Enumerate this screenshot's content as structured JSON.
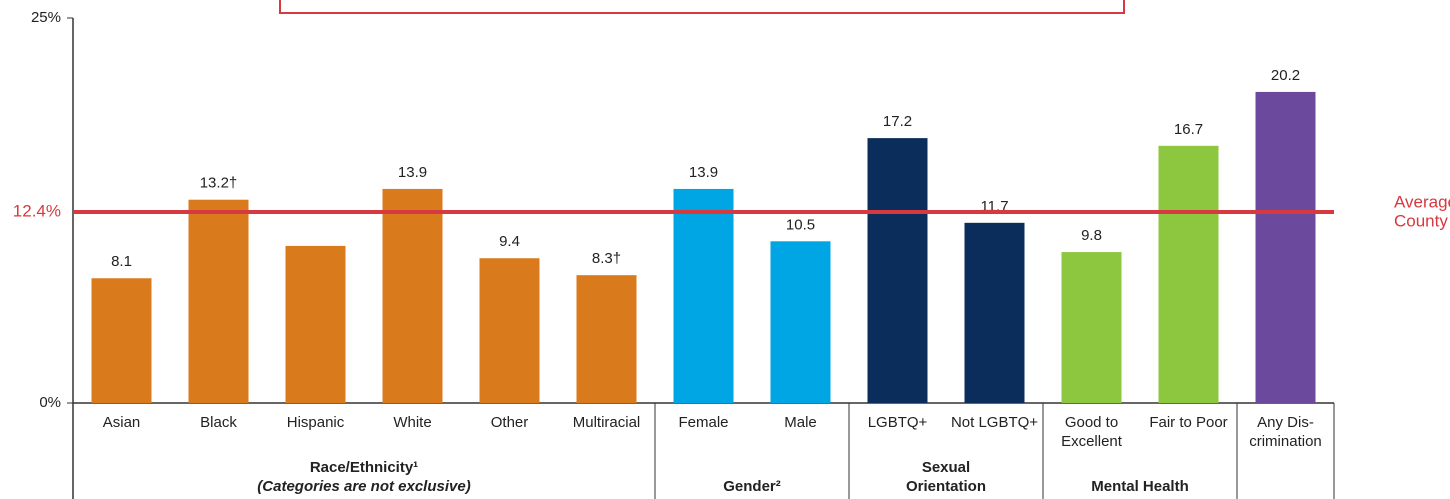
{
  "chart_data": {
    "type": "bar",
    "categories": [
      [
        "Asian"
      ],
      [
        "Black"
      ],
      [
        "Hispanic"
      ],
      [
        "White"
      ],
      [
        "Other"
      ],
      [
        "Multiracial"
      ],
      [
        "Female"
      ],
      [
        "Male"
      ],
      [
        "LGBTQ+"
      ],
      [
        "Not LGBTQ+"
      ],
      [
        "Good to",
        "Excellent"
      ],
      [
        "Fair to Poor"
      ],
      [
        "Any Dis-",
        "crimination"
      ]
    ],
    "values": [
      8.1,
      13.2,
      10.2,
      13.9,
      9.4,
      8.3,
      13.9,
      10.5,
      17.2,
      11.7,
      9.8,
      16.7,
      20.2
    ],
    "value_labels": [
      "8.1",
      "13.2†",
      "",
      "13.9",
      "9.4",
      "8.3†",
      "13.9",
      "10.5",
      "17.2",
      "11.7",
      "9.8",
      "16.7",
      "20.2"
    ],
    "colors": [
      "#d97a1d",
      "#d97a1d",
      "#d97a1d",
      "#d97a1d",
      "#d97a1d",
      "#d97a1d",
      "#00a6e4",
      "#00a6e4",
      "#0b2d5b",
      "#0b2d5b",
      "#8dc63f",
      "#8dc63f",
      "#6b4a9e"
    ],
    "groups": [
      {
        "label": [
          "Race/Ethnicity¹"
        ],
        "note": "(Categories are not exclusive)"
      },
      {
        "label": [
          "Gender²"
        ]
      },
      {
        "label": [
          "Sexual",
          "Orientation"
        ]
      },
      {
        "label": [
          "Mental Health"
        ]
      }
    ],
    "reference_line": {
      "value": 12.4,
      "label": "12.4%",
      "text": [
        "Average",
        "County Use"
      ],
      "color": "#d6393f"
    },
    "ylim": [
      0,
      25
    ],
    "yticks": [
      {
        "value": 0,
        "label": "0%"
      },
      {
        "value": 25,
        "label": "25%"
      }
    ],
    "grid": false
  }
}
